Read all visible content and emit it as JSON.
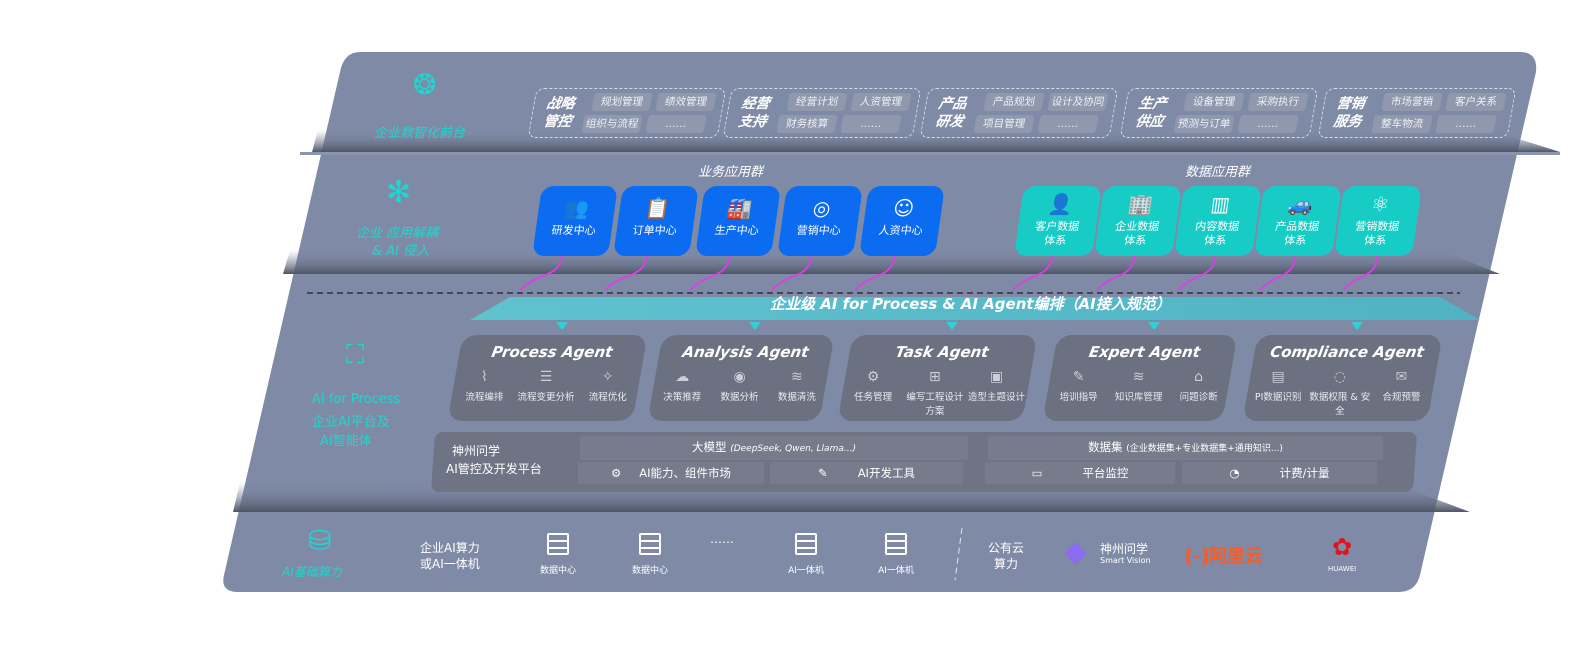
{
  "colors": {
    "panel": "#7f8ba6",
    "accent_teal": "#1fd6d0",
    "blue_card": "#0b6cf2",
    "teal_card": "#18ccc6",
    "agent_card": "#6b7180",
    "arrow": "#e03ce8"
  },
  "front": {
    "label": "企业数智化前台",
    "icon": "brain-icon",
    "groups": [
      {
        "title": [
          "战略",
          "管控"
        ],
        "items": [
          "规划管理",
          "绩效管理",
          "组织与流程",
          "……"
        ]
      },
      {
        "title": [
          "经营",
          "支持"
        ],
        "items": [
          "经营计划",
          "人资管理",
          "财务核算",
          "……"
        ]
      },
      {
        "title": [
          "产品",
          "研发"
        ],
        "items": [
          "产品规划",
          "设计及协同",
          "项目管理",
          "……"
        ]
      },
      {
        "title": [
          "生产",
          "供应"
        ],
        "items": [
          "设备管理",
          "采购执行",
          "预测与订单",
          "……"
        ]
      },
      {
        "title": [
          "营销",
          "服务"
        ],
        "items": [
          "市场营销",
          "客户关系",
          "整车物流",
          "……"
        ]
      }
    ]
  },
  "apps": {
    "label1": "企业 应用解耦",
    "label2": "& AI 侵入",
    "icon": "molecule-icon",
    "business_title": "业务应用群",
    "business": [
      {
        "label": "研发中心",
        "icon": "users-icon"
      },
      {
        "label": "订单中心",
        "icon": "clipboard-icon"
      },
      {
        "label": "生产中心",
        "icon": "factory-icon"
      },
      {
        "label": "营销中心",
        "icon": "target-icon"
      },
      {
        "label": "人资中心",
        "icon": "person-icon"
      }
    ],
    "data_title": "数据应用群",
    "data": [
      {
        "label": "客户数据体系",
        "icon": "user-icon"
      },
      {
        "label": "企业数据体系",
        "icon": "building-icon"
      },
      {
        "label": "内容数据体系",
        "icon": "books-icon"
      },
      {
        "label": "产品数据体系",
        "icon": "car-icon"
      },
      {
        "label": "营销数据体系",
        "icon": "atom-icon"
      }
    ]
  },
  "banner": "企业级 AI for Process & AI Agent编排（AI接入规范）",
  "ai": {
    "label1": "AI for Process",
    "label2": "企业AI平台及",
    "label3": "AI智能体",
    "icon": "face-scan-icon",
    "agents": [
      {
        "name": "Process Agent",
        "items": [
          "流程编排",
          "流程变更分析",
          "流程优化"
        ]
      },
      {
        "name": "Analysis Agent",
        "items": [
          "决策推荐",
          "数据分析",
          "数据清洗"
        ]
      },
      {
        "name": "Task Agent",
        "items": [
          "任务管理",
          "编写工程设计方案",
          "造型主题设计"
        ]
      },
      {
        "name": "Expert Agent",
        "items": [
          "培训指导",
          "知识库管理",
          "问题诊断"
        ]
      },
      {
        "name": "Compliance Agent",
        "items": [
          "PI数据识别",
          "数据权限 & 安全",
          "合规预警"
        ]
      }
    ]
  },
  "platform": {
    "name1": "神州问学",
    "name2": "AI管控及开发平台",
    "model": "大模型",
    "model_note": "(DeepSeek, Qwen, Llama...)",
    "dataset": "数据集",
    "dataset_note": "(企业数据集+专业数据集+通用知识...)",
    "tools": [
      "AI能力、组件市场",
      "AI开发工具",
      "平台监控",
      "计费/计量"
    ]
  },
  "infra": {
    "label": "AI基础算力",
    "local1": "企业AI算力",
    "local2": "或AI一体机",
    "servers": [
      "数据中心",
      "数据中心",
      "AI一体机",
      "AI一体机"
    ],
    "ellipsis": "……",
    "public1": "公有云",
    "public2": "算力",
    "vendors": [
      "神州问学",
      "Smart Vision",
      "阿里云",
      "HUAWEI"
    ]
  }
}
